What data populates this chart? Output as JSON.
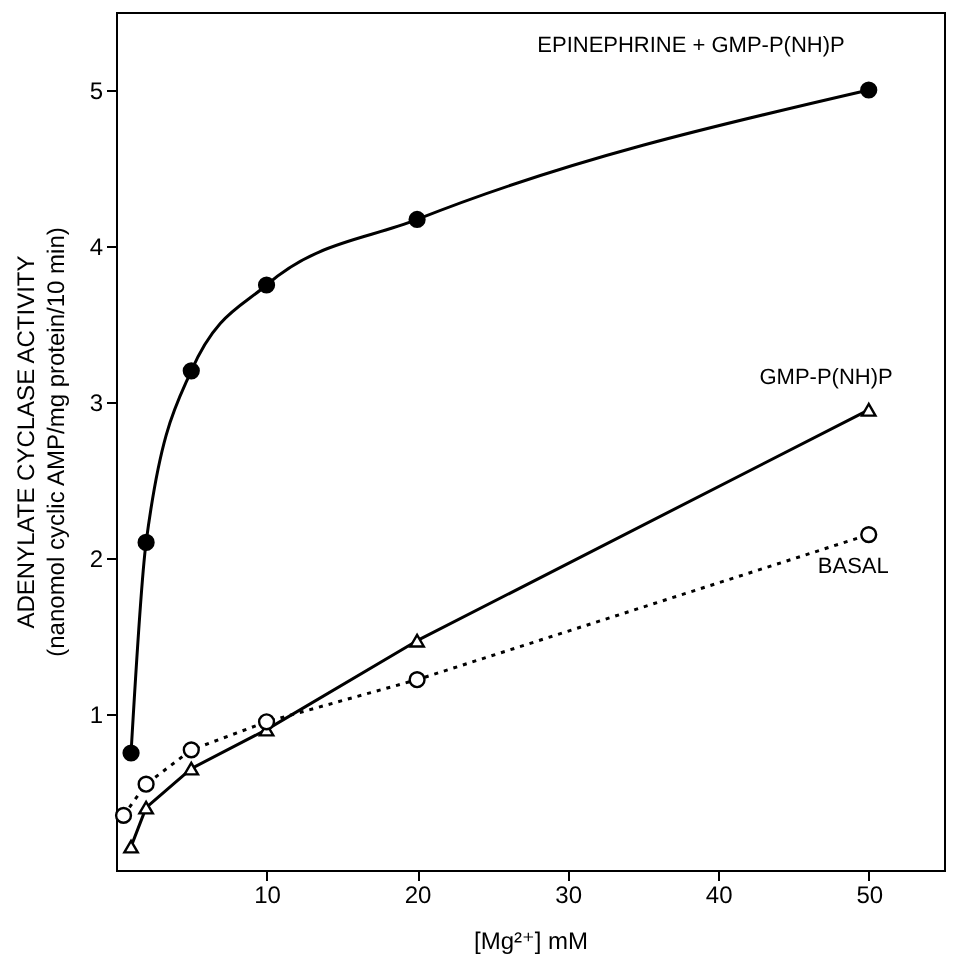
{
  "chart_data": {
    "type": "line",
    "xlabel": "[Mg²⁺]  mM",
    "ylabel": "ADENYLATE CYCLASE ACTIVITY\n(nanomol  cyclic AMP/mg protein/10 min)",
    "xlim": [
      0,
      55
    ],
    "xticks": [
      10,
      20,
      30,
      40,
      50
    ],
    "ylim": [
      0,
      5.5
    ],
    "yticks": [
      1,
      2,
      3,
      4,
      5
    ],
    "grid": false,
    "series": [
      {
        "name": "EPINEPHRINE + GMP-P(NH)P",
        "color": "#000000",
        "marker": "circle",
        "line_style": "solid",
        "x": [
          1,
          2,
          5,
          10,
          20,
          50
        ],
        "values": [
          0.75,
          2.1,
          3.2,
          3.75,
          4.17,
          5.0
        ]
      },
      {
        "name": "GMP-P(NH)P",
        "color": "#000000",
        "marker": "triangle",
        "line_style": "solid",
        "x": [
          1,
          2,
          5,
          10,
          20,
          50
        ],
        "values": [
          0.15,
          0.4,
          0.65,
          0.9,
          1.47,
          2.95
        ]
      },
      {
        "name": "BASAL",
        "color": "#000000",
        "marker": "circle",
        "line_style": "dotted",
        "x": [
          0.5,
          2,
          5,
          10,
          20,
          50
        ],
        "values": [
          0.35,
          0.55,
          0.77,
          0.95,
          1.22,
          2.15
        ]
      }
    ]
  }
}
